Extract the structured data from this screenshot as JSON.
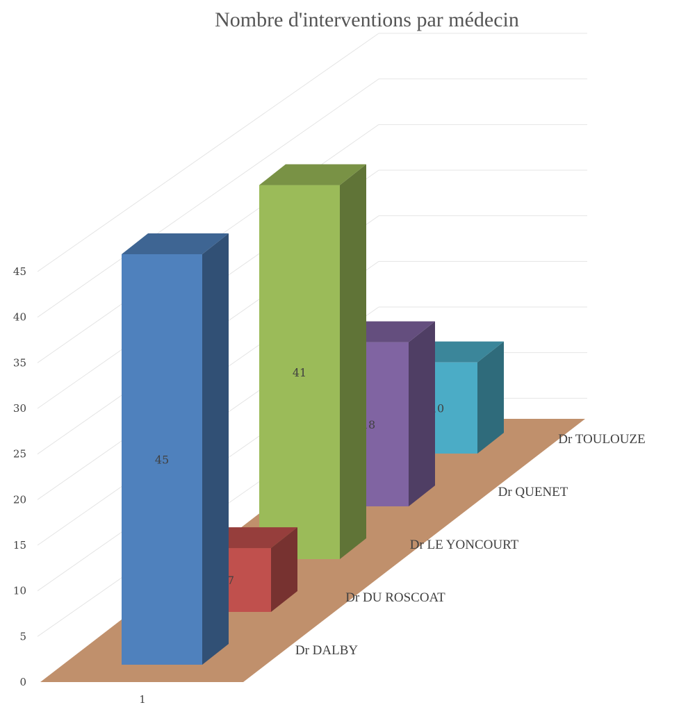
{
  "chart_data": {
    "type": "bar",
    "title": "Nombre d'interventions par médecin",
    "x_categories": [
      "1"
    ],
    "series": [
      {
        "name": "Dr DALBY",
        "values": [
          45
        ],
        "color": "#4F81BD"
      },
      {
        "name": "Dr DU ROSCOAT",
        "values": [
          7
        ],
        "color": "#C0504D"
      },
      {
        "name": "Dr LE YONCOURT",
        "values": [
          41
        ],
        "color": "#9BBB59"
      },
      {
        "name": "Dr QUENET",
        "values": [
          18
        ],
        "color": "#8064A2"
      },
      {
        "name": "Dr TOULOUZE",
        "values": [
          10
        ],
        "color": "#4BACC6"
      }
    ],
    "y_ticks": [
      "0",
      "5",
      "10",
      "15",
      "20",
      "25",
      "30",
      "35",
      "40",
      "45"
    ],
    "ylim": [
      0,
      45
    ],
    "data_labels": true,
    "grid": true,
    "projection": "3d",
    "floor_color": "#C0906C"
  }
}
